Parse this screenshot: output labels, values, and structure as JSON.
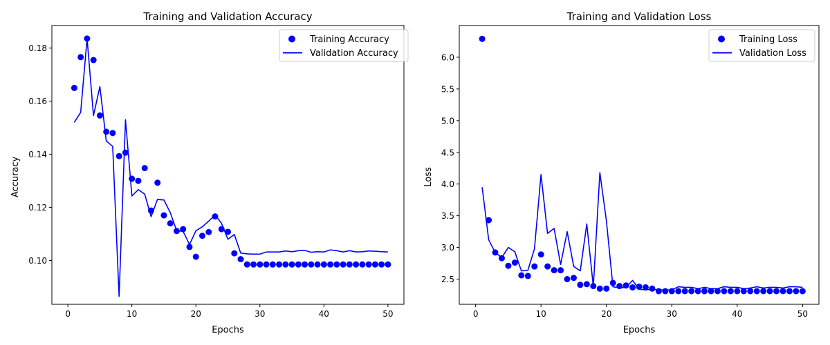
{
  "chart_data": [
    {
      "type": "line",
      "title": "Training and Validation Accuracy",
      "xlabel": "Epochs",
      "ylabel": "Accuracy",
      "xlim": [
        -2.5,
        52.5
      ],
      "ylim": [
        0.0835,
        0.1885
      ],
      "xticks": [
        0,
        10,
        20,
        30,
        40,
        50
      ],
      "yticks": [
        0.1,
        0.12,
        0.14,
        0.16,
        0.18
      ],
      "ytick_labels": [
        "0.10",
        "0.12",
        "0.14",
        "0.16",
        "0.18"
      ],
      "grid": false,
      "legend": "top-right",
      "series": [
        {
          "name": "Training Accuracy",
          "style": "markers",
          "color": "#0000ff",
          "x": [
            1,
            2,
            3,
            4,
            5,
            6,
            7,
            8,
            9,
            10,
            11,
            12,
            13,
            14,
            15,
            16,
            17,
            18,
            19,
            20,
            21,
            22,
            23,
            24,
            25,
            26,
            27,
            28,
            29,
            30,
            31,
            32,
            33,
            34,
            35,
            36,
            37,
            38,
            39,
            40,
            41,
            42,
            43,
            44,
            45,
            46,
            47,
            48,
            49,
            50
          ],
          "values": [
            0.165,
            0.1766,
            0.1836,
            0.1755,
            0.1546,
            0.1485,
            0.148,
            0.1393,
            0.1406,
            0.1308,
            0.13,
            0.1348,
            0.1188,
            0.1293,
            0.117,
            0.114,
            0.1111,
            0.1118,
            0.1051,
            0.1014,
            0.1093,
            0.1107,
            0.1166,
            0.1118,
            0.1108,
            0.1027,
            0.1005,
            0.0985,
            0.0985,
            0.0985,
            0.0985,
            0.0985,
            0.0985,
            0.0985,
            0.0985,
            0.0985,
            0.0985,
            0.0985,
            0.0985,
            0.0985,
            0.0985,
            0.0985,
            0.0985,
            0.0985,
            0.0985,
            0.0985,
            0.0985,
            0.0985,
            0.0985,
            0.0985
          ]
        },
        {
          "name": "Validation Accuracy",
          "style": "line",
          "color": "#0000ff",
          "x": [
            1,
            2,
            3,
            4,
            5,
            6,
            7,
            8,
            9,
            10,
            11,
            12,
            13,
            14,
            15,
            16,
            17,
            18,
            19,
            20,
            21,
            22,
            23,
            24,
            25,
            26,
            27,
            28,
            29,
            30,
            31,
            32,
            33,
            34,
            35,
            36,
            37,
            38,
            39,
            40,
            41,
            42,
            43,
            44,
            45,
            46,
            47,
            48,
            49,
            50
          ],
          "values": [
            0.152,
            0.1558,
            0.1836,
            0.1546,
            0.1655,
            0.145,
            0.143,
            0.0865,
            0.153,
            0.1243,
            0.1267,
            0.125,
            0.1165,
            0.123,
            0.1228,
            0.118,
            0.1112,
            0.111,
            0.106,
            0.1112,
            0.1127,
            0.1148,
            0.1172,
            0.114,
            0.108,
            0.1098,
            0.1028,
            0.1025,
            0.1024,
            0.1024,
            0.1032,
            0.1032,
            0.1032,
            0.1036,
            0.1033,
            0.1037,
            0.1038,
            0.1031,
            0.1033,
            0.1032,
            0.104,
            0.1037,
            0.1032,
            0.1037,
            0.1032,
            0.1033,
            0.1036,
            0.1035,
            0.1033,
            0.1032
          ]
        }
      ]
    },
    {
      "type": "line",
      "title": "Training and Validation Loss",
      "xlabel": "Epochs",
      "ylabel": "Loss",
      "xlim": [
        -2.5,
        52.5
      ],
      "ylim": [
        2.103,
        6.5
      ],
      "xticks": [
        0,
        10,
        20,
        30,
        40,
        50
      ],
      "yticks": [
        2.5,
        3.0,
        3.5,
        4.0,
        4.5,
        5.0,
        5.5,
        6.0
      ],
      "ytick_labels": [
        "2.5",
        "3.0",
        "3.5",
        "4.0",
        "4.5",
        "5.0",
        "5.5",
        "6.0"
      ],
      "grid": false,
      "legend": "top-right",
      "series": [
        {
          "name": "Training Loss",
          "style": "markers",
          "color": "#0000ff",
          "x": [
            1,
            2,
            3,
            4,
            5,
            6,
            7,
            8,
            9,
            10,
            11,
            12,
            13,
            14,
            15,
            16,
            17,
            18,
            19,
            20,
            21,
            22,
            23,
            24,
            25,
            26,
            27,
            28,
            29,
            30,
            31,
            32,
            33,
            34,
            35,
            36,
            37,
            38,
            39,
            40,
            41,
            42,
            43,
            44,
            45,
            46,
            47,
            48,
            49,
            50
          ],
          "values": [
            6.29,
            3.43,
            2.92,
            2.83,
            2.71,
            2.76,
            2.56,
            2.55,
            2.7,
            2.89,
            2.7,
            2.64,
            2.64,
            2.5,
            2.52,
            2.41,
            2.42,
            2.39,
            2.35,
            2.35,
            2.44,
            2.39,
            2.4,
            2.37,
            2.38,
            2.37,
            2.35,
            2.31,
            2.31,
            2.31,
            2.31,
            2.31,
            2.31,
            2.31,
            2.31,
            2.31,
            2.31,
            2.31,
            2.31,
            2.31,
            2.31,
            2.31,
            2.31,
            2.31,
            2.31,
            2.31,
            2.31,
            2.31,
            2.31,
            2.31
          ]
        },
        {
          "name": "Validation Loss",
          "style": "line",
          "color": "#0000ff",
          "x": [
            1,
            2,
            3,
            4,
            5,
            6,
            7,
            8,
            9,
            10,
            11,
            12,
            13,
            14,
            15,
            16,
            17,
            18,
            19,
            20,
            21,
            22,
            23,
            24,
            25,
            26,
            27,
            28,
            29,
            30,
            31,
            32,
            33,
            34,
            35,
            36,
            37,
            38,
            39,
            40,
            41,
            42,
            43,
            44,
            45,
            46,
            47,
            48,
            49,
            50
          ],
          "values": [
            3.95,
            3.12,
            2.92,
            2.84,
            3.0,
            2.93,
            2.63,
            2.64,
            2.98,
            4.15,
            3.22,
            3.3,
            2.73,
            3.25,
            2.7,
            2.63,
            3.37,
            2.38,
            4.18,
            3.42,
            2.38,
            2.36,
            2.37,
            2.48,
            2.34,
            2.33,
            2.34,
            2.33,
            2.33,
            2.33,
            2.38,
            2.37,
            2.37,
            2.35,
            2.37,
            2.35,
            2.35,
            2.38,
            2.37,
            2.37,
            2.35,
            2.36,
            2.38,
            2.36,
            2.37,
            2.37,
            2.36,
            2.38,
            2.38,
            2.37
          ]
        }
      ]
    }
  ]
}
